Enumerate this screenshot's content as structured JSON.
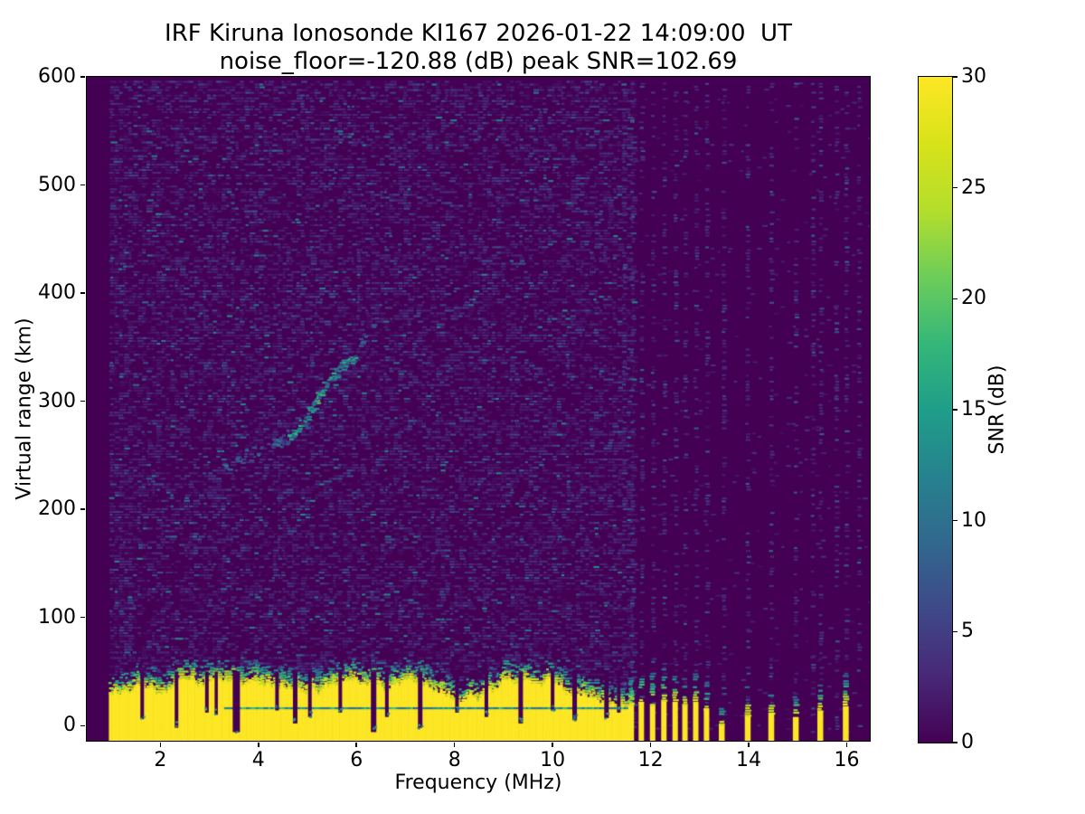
{
  "figure": {
    "title_line1": "IRF Kiruna Ionosonde KI167 2026-01-22 14:09:00  UT",
    "title_line2": "noise_floor=-120.88 (dB) peak SNR=102.69",
    "background_color": "#ffffff",
    "text_color": "#000000"
  },
  "chart_data": {
    "type": "heatmap",
    "title": "IRF Kiruna Ionosonde KI167 2026-01-22 14:09:00  UT",
    "subtitle": "noise_floor=-120.88 (dB) peak SNR=102.69",
    "station": "KI167",
    "timestamp_ut": "2026-01-22 14:09:00",
    "noise_floor_db": -120.88,
    "peak_snr_db": 102.69,
    "xlabel": "Frequency (MHz)",
    "ylabel": "Virtual range (km)",
    "colorbar_label": "SNR (dB)",
    "xlim": [
      0.5,
      16.47
    ],
    "ylim": [
      -14,
      600
    ],
    "clim": [
      0,
      30
    ],
    "x_ticks": [
      2,
      4,
      6,
      8,
      10,
      12,
      14,
      16
    ],
    "y_ticks": [
      0,
      100,
      200,
      300,
      400,
      500,
      600
    ],
    "colorbar_ticks": [
      0,
      5,
      10,
      15,
      20,
      25,
      30
    ],
    "colormap": "viridis",
    "colormap_stops": [
      [
        0,
        "#440154"
      ],
      [
        0.1,
        "#482878"
      ],
      [
        0.2,
        "#3e4989"
      ],
      [
        0.3,
        "#31688e"
      ],
      [
        0.4,
        "#26828e"
      ],
      [
        0.5,
        "#1f9e89"
      ],
      [
        0.6,
        "#35b779"
      ],
      [
        0.7,
        "#6dcd59"
      ],
      [
        0.8,
        "#b4de2c"
      ],
      [
        0.9,
        "#d8e219"
      ],
      [
        1,
        "#fde725"
      ]
    ],
    "sweep_start_mhz": 0.95,
    "continuous_band_end_mhz": 11.63,
    "ground_clutter_band": {
      "solid_top_km_min": 18,
      "solid_top_km_max": 44,
      "speckle_extent_km": 24,
      "inner_line_km": 17,
      "inner_line_start_mhz": 3.3,
      "solid_snr_db": 30
    },
    "band_notches": [
      [
        1.63,
        6,
        4
      ],
      [
        2.33,
        -2,
        4
      ],
      [
        2.95,
        12,
        4
      ],
      [
        3.14,
        10,
        3.5
      ],
      [
        3.55,
        -6,
        8
      ],
      [
        4.38,
        14,
        4
      ],
      [
        4.75,
        2,
        5
      ],
      [
        5.05,
        8,
        4
      ],
      [
        5.67,
        12,
        4
      ],
      [
        6.35,
        -6,
        6
      ],
      [
        6.62,
        8,
        4
      ],
      [
        7.3,
        -2,
        5
      ],
      [
        8.05,
        12,
        4
      ],
      [
        8.65,
        8,
        4
      ],
      [
        9.35,
        2,
        5
      ],
      [
        10.0,
        14,
        4
      ],
      [
        10.45,
        5,
        5
      ],
      [
        11.1,
        7,
        5
      ],
      [
        11.35,
        12,
        4
      ]
    ],
    "echo_trace": {
      "points": [
        [
          3.3,
          238
        ],
        [
          3.6,
          246
        ],
        [
          3.9,
          252
        ],
        [
          4.2,
          258
        ],
        [
          4.5,
          264
        ],
        [
          4.75,
          272
        ],
        [
          4.95,
          283
        ],
        [
          5.1,
          295
        ],
        [
          5.25,
          308
        ],
        [
          5.4,
          318
        ],
        [
          5.55,
          327
        ],
        [
          5.75,
          336
        ],
        [
          6.0,
          344
        ]
      ],
      "faint_extension": [
        [
          6.05,
          350
        ],
        [
          6.25,
          362
        ],
        [
          6.45,
          382
        ]
      ],
      "snr_db_range": [
        5,
        18
      ]
    },
    "rf_stripes": {
      "cluster": [
        [
          11.6,
          18,
          48
        ],
        [
          11.81,
          22,
          52
        ],
        [
          12.04,
          20,
          50
        ],
        [
          12.27,
          24,
          54
        ],
        [
          12.5,
          22,
          50
        ],
        [
          12.7,
          20,
          46
        ],
        [
          12.92,
          22,
          50
        ],
        [
          13.14,
          16,
          42
        ]
      ],
      "isolated": [
        [
          13.45,
          2,
          18
        ],
        [
          13.98,
          10,
          38
        ],
        [
          14.46,
          12,
          34
        ],
        [
          14.96,
          8,
          30
        ],
        [
          15.46,
          14,
          38
        ],
        [
          15.98,
          18,
          48
        ]
      ]
    },
    "noise_columns_mhz": [
      11.45,
      11.6,
      11.81,
      12.04,
      12.27,
      12.5,
      12.7,
      12.92,
      13.14,
      13.48,
      13.97,
      14.45,
      14.95,
      15.3,
      15.46,
      15.78,
      15.98,
      16.24
    ]
  }
}
